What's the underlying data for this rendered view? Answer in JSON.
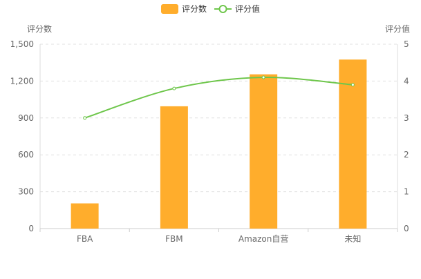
{
  "chart_data": {
    "type": "bar",
    "categories": [
      "FBA",
      "FBM",
      "Amazon自营",
      "未知"
    ],
    "series": [
      {
        "name": "评分数",
        "type": "bar",
        "axis": "left",
        "color": "#FFAD2C",
        "values": [
          205,
          995,
          1255,
          1375
        ]
      },
      {
        "name": "评分值",
        "type": "line",
        "axis": "right",
        "color": "#6EC64B",
        "smooth": true,
        "values": [
          3.0,
          3.8,
          4.1,
          3.9
        ]
      }
    ],
    "y_left": {
      "label": "评分数",
      "min": 0,
      "max": 1500,
      "ticks": [
        0,
        300,
        600,
        900,
        1200,
        1500
      ],
      "tick_labels": [
        "0",
        "300",
        "600",
        "900",
        "1,200",
        "1,500"
      ]
    },
    "y_right": {
      "label": "评分值",
      "min": 0,
      "max": 5,
      "ticks": [
        0,
        1,
        2,
        3,
        4,
        5
      ],
      "tick_labels": [
        "0",
        "1",
        "2",
        "3",
        "4",
        "5"
      ]
    },
    "grid": true,
    "legend_position": "top-center"
  }
}
